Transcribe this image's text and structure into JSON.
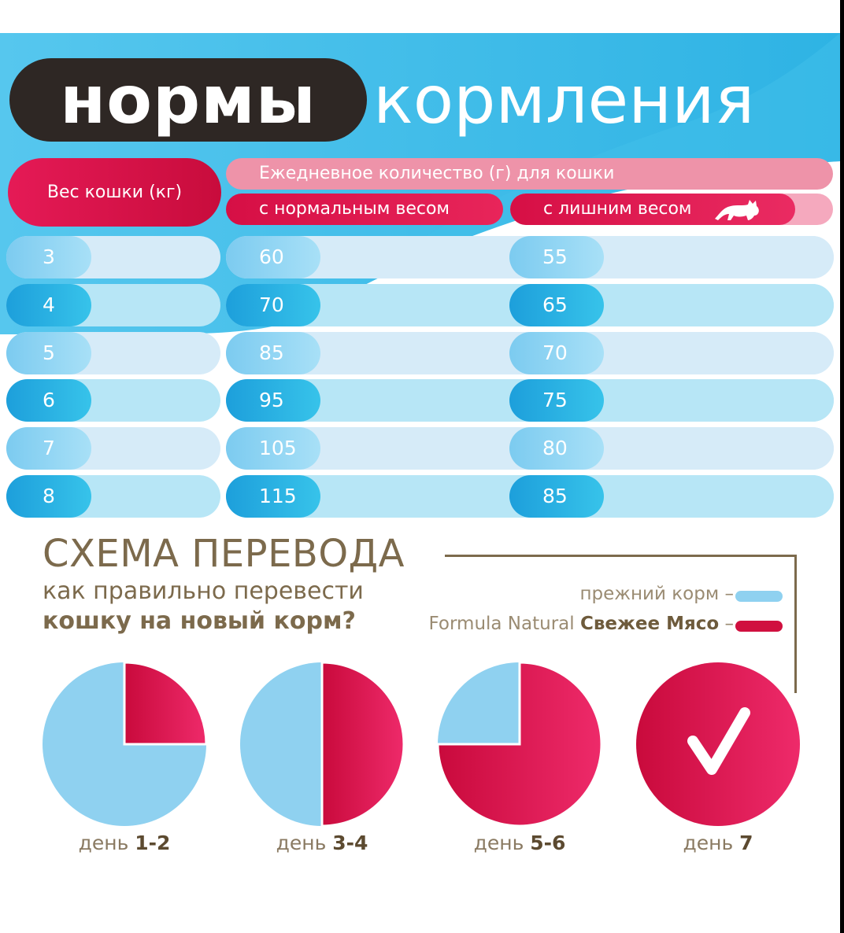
{
  "title": {
    "bold": "нормы",
    "light": "кормления"
  },
  "table": {
    "header_weight": "Вес кошки (кг)",
    "header_daily": "Ежедневное количество (г) для кошки",
    "header_normal": "с нормальным весом",
    "header_overweight": "с лишним весом",
    "rows": [
      {
        "weight": "3",
        "normal": "60",
        "overweight": "55"
      },
      {
        "weight": "4",
        "normal": "70",
        "overweight": "65"
      },
      {
        "weight": "5",
        "normal": "85",
        "overweight": "70"
      },
      {
        "weight": "6",
        "normal": "95",
        "overweight": "75"
      },
      {
        "weight": "7",
        "normal": "105",
        "overweight": "80"
      },
      {
        "weight": "8",
        "normal": "115",
        "overweight": "85"
      }
    ]
  },
  "scheme": {
    "title": "СХЕМА ПЕРЕВОДА",
    "subtitle_line1": "как правильно перевести",
    "subtitle_line2": "кошку на новый корм?",
    "legend_old": "прежний корм –",
    "legend_new_prefix": "Formula Natural",
    "legend_new_bold": "Свежее Мясо",
    "legend_new_suffix": "–",
    "days": [
      {
        "prefix": "день",
        "bold": "1-2",
        "new_share": 0.25
      },
      {
        "prefix": "день",
        "bold": "3-4",
        "new_share": 0.5
      },
      {
        "prefix": "день",
        "bold": "5-6",
        "new_share": 0.75
      },
      {
        "prefix": "день",
        "bold": "7",
        "new_share": 1.0
      }
    ]
  },
  "colors": {
    "dark_pill": "#2e2724",
    "cyan": "#2bb5e3",
    "pink": "#e0184f",
    "light_blue": "#8fd1f0",
    "brown": "#7c6a4c"
  },
  "icons": [
    "cat-icon",
    "check-icon"
  ]
}
